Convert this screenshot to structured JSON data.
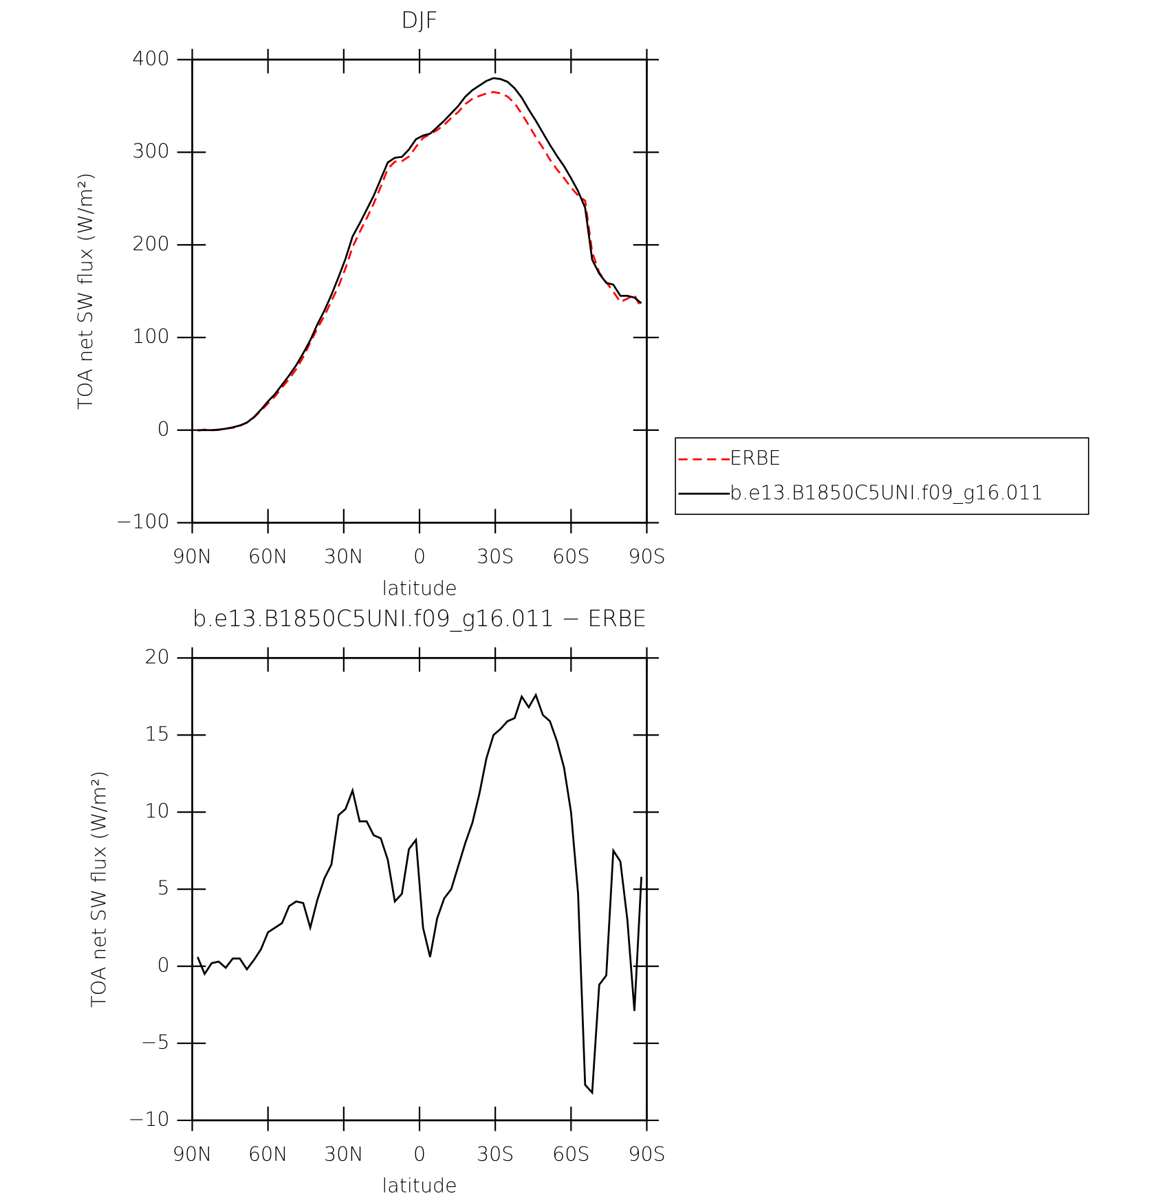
{
  "chart_data": [
    {
      "type": "line",
      "title": "DJF",
      "xlabel": "latitude",
      "ylabel": "TOA net SW flux (W/m²)",
      "x": [
        87.86,
        85.1,
        82.31,
        79.53,
        76.74,
        73.95,
        71.16,
        68.37,
        65.58,
        62.79,
        60.0,
        57.21,
        54.42,
        51.63,
        48.84,
        46.05,
        43.26,
        40.47,
        37.67,
        34.88,
        32.09,
        29.3,
        26.51,
        23.72,
        20.93,
        18.14,
        15.35,
        12.56,
        9.77,
        6.98,
        4.19,
        1.4,
        -1.4,
        -4.19,
        -6.98,
        -9.77,
        -12.56,
        -15.35,
        -18.14,
        -20.93,
        -23.72,
        -26.51,
        -29.3,
        -32.09,
        -34.88,
        -37.67,
        -40.47,
        -43.26,
        -46.05,
        -48.84,
        -51.63,
        -54.42,
        -57.21,
        -60.0,
        -62.79,
        -65.58,
        -68.37,
        -71.16,
        -73.95,
        -76.74,
        -79.53,
        -82.31,
        -85.1,
        -87.86
      ],
      "series": [
        {
          "name": "ERBE",
          "color": "#ff0000",
          "linestyle": "dashed",
          "values": [
            -0.6,
            0.5,
            -0.2,
            0.2,
            1.6,
            2.5,
            4.5,
            8.2,
            13.6,
            20.9,
            28.8,
            36.5,
            46.2,
            55.1,
            65.8,
            78.9,
            94.5,
            109.7,
            123.3,
            139.4,
            155.2,
            174.8,
            197.6,
            213.6,
            228.6,
            244.5,
            262.7,
            282.1,
            289.8,
            290.3,
            295.4,
            305.8,
            315.5,
            319.4,
            323.9,
            329.6,
            337,
            343.5,
            352,
            357.7,
            360.8,
            363.5,
            365,
            363.6,
            360.1,
            352.9,
            341.5,
            329.2,
            316.4,
            304.7,
            292.1,
            281.4,
            272.1,
            262,
            253.3,
            247.7,
            192.2,
            170.2,
            159.6,
            149.5,
            138.2,
            142,
            145.9,
            131.2
          ]
        },
        {
          "name": "b.e13.B1850C5UNI.f09_g16.011",
          "color": "#000000",
          "linestyle": "solid",
          "values": [
            0,
            0,
            0,
            0.5,
            1.5,
            3,
            5,
            8,
            14,
            22,
            31,
            39,
            49,
            59,
            70,
            83,
            97,
            114,
            129,
            146,
            165,
            185,
            209,
            223,
            238,
            253,
            271,
            289,
            294,
            295,
            303,
            314,
            318,
            320,
            327,
            334,
            342,
            350,
            360,
            367,
            372,
            377,
            380,
            379,
            376,
            369,
            359,
            346,
            334,
            321,
            308,
            296,
            285,
            272,
            258,
            240,
            184,
            169,
            159,
            157,
            145,
            145,
            143,
            137
          ]
        }
      ],
      "xlim": [
        90,
        -90
      ],
      "xticks": [
        {
          "value": 90,
          "label": "90N"
        },
        {
          "value": 60,
          "label": "60N"
        },
        {
          "value": 30,
          "label": "30N"
        },
        0,
        {
          "value": -30,
          "label": "30S"
        },
        {
          "value": -60,
          "label": "60S"
        },
        {
          "value": -90,
          "label": "90S"
        }
      ],
      "ylim": [
        -100,
        400
      ],
      "yticks": [
        {
          "value": -100,
          "label": "−100"
        },
        0,
        100,
        200,
        300,
        400
      ],
      "legend": "right"
    },
    {
      "type": "line",
      "title": "b.e13.B1850C5UNI.f09_g16.011 − ERBE",
      "xlabel": "latitude",
      "ylabel": "TOA net SW flux (W/m²)",
      "x": [
        87.86,
        85.1,
        82.31,
        79.53,
        76.74,
        73.95,
        71.16,
        68.37,
        65.58,
        62.79,
        60.0,
        57.21,
        54.42,
        51.63,
        48.84,
        46.05,
        43.26,
        40.47,
        37.67,
        34.88,
        32.09,
        29.3,
        26.51,
        23.72,
        20.93,
        18.14,
        15.35,
        12.56,
        9.77,
        6.98,
        4.19,
        1.4,
        -1.4,
        -4.19,
        -6.98,
        -9.77,
        -12.56,
        -15.35,
        -18.14,
        -20.93,
        -23.72,
        -26.51,
        -29.3,
        -32.09,
        -34.88,
        -37.67,
        -40.47,
        -43.26,
        -46.05,
        -48.84,
        -51.63,
        -54.42,
        -57.21,
        -60.0,
        -62.79,
        -65.58,
        -68.37,
        -71.16,
        -73.95,
        -76.74,
        -79.53,
        -82.31,
        -85.1,
        -87.86
      ],
      "color": "#000000",
      "values": [
        0.6,
        -0.5,
        0.2,
        0.3,
        -0.1,
        0.5,
        0.5,
        -0.2,
        0.4,
        1.1,
        2.2,
        2.5,
        2.8,
        3.9,
        4.2,
        4.1,
        2.5,
        4.3,
        5.7,
        6.6,
        9.8,
        10.2,
        11.4,
        9.4,
        9.4,
        8.5,
        8.3,
        6.9,
        4.2,
        4.7,
        7.6,
        8.2,
        2.5,
        0.6,
        3.1,
        4.4,
        5.0,
        6.5,
        8.0,
        9.3,
        11.2,
        13.5,
        15.0,
        15.4,
        15.9,
        16.1,
        17.5,
        16.8,
        17.6,
        16.3,
        15.9,
        14.6,
        12.9,
        10.0,
        4.7,
        -7.7,
        -8.2,
        -1.2,
        -0.6,
        7.5,
        6.8,
        3.0,
        -2.9,
        5.8
      ],
      "xlim": [
        90,
        -90
      ],
      "xticks": [
        {
          "value": 90,
          "label": "90N"
        },
        {
          "value": 60,
          "label": "60N"
        },
        {
          "value": 30,
          "label": "30N"
        },
        0,
        {
          "value": -30,
          "label": "30S"
        },
        {
          "value": -60,
          "label": "60S"
        },
        {
          "value": -90,
          "label": "90S"
        }
      ],
      "ylim": [
        -10,
        20
      ],
      "yticks": [
        {
          "value": -10,
          "label": "−10"
        },
        {
          "value": -5,
          "label": "−5"
        },
        0,
        5,
        10,
        15,
        20
      ]
    }
  ]
}
